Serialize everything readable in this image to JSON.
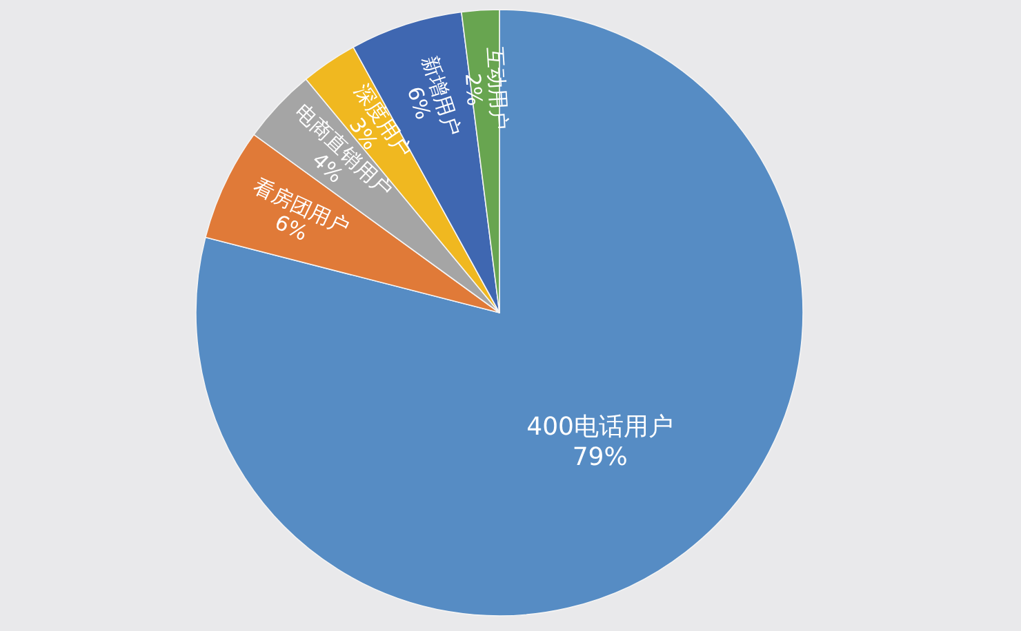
{
  "chart_data": {
    "type": "pie",
    "categories": [
      "400电话用户",
      "看房团用户",
      "电商直销用户",
      "深度用户",
      "新增用户",
      "互动用户"
    ],
    "values": [
      79,
      6,
      4,
      3,
      6,
      2
    ],
    "colors": [
      "#568cc4",
      "#e07a38",
      "#a5a5a5",
      "#f0b820",
      "#3f67b1",
      "#68a550"
    ],
    "value_labels": [
      "79%",
      "6%",
      "4%",
      "3%",
      "6%",
      "2%"
    ]
  }
}
